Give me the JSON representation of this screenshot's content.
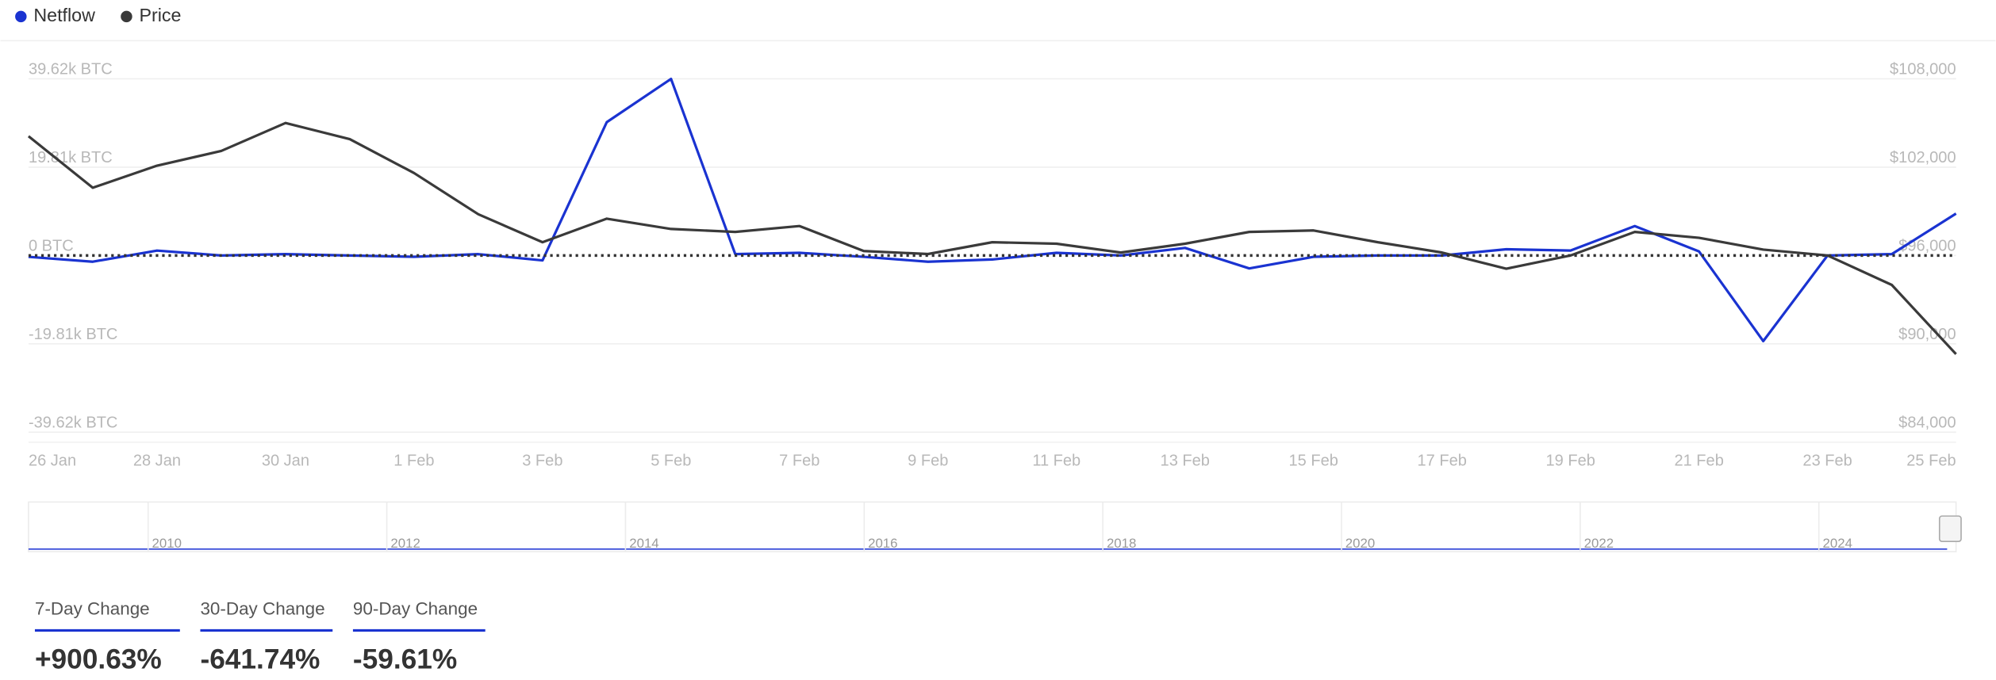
{
  "chart_data": {
    "type": "line",
    "categories": [
      "26 Jan",
      null,
      "28 Jan",
      null,
      "30 Jan",
      null,
      "1 Feb",
      null,
      "3 Feb",
      null,
      "5 Feb",
      null,
      "7 Feb",
      null,
      "9 Feb",
      null,
      "11 Feb",
      null,
      "13 Feb",
      null,
      "15 Feb",
      null,
      "17 Feb",
      null,
      "19 Feb",
      null,
      "21 Feb",
      null,
      "23 Feb",
      null,
      "25 Feb"
    ],
    "series": [
      {
        "name": "Netflow",
        "color": "#1a33d1",
        "values": [
          -300,
          -1400,
          1100,
          0,
          300,
          0,
          -300,
          300,
          -1100,
          29900,
          39600,
          300,
          600,
          -300,
          -1400,
          -900,
          600,
          0,
          1700,
          -2900,
          -300,
          0,
          0,
          1400,
          1100,
          6600,
          900,
          -19200,
          0,
          300,
          9400
        ]
      },
      {
        "name": "Price",
        "color": "#3a3a3a",
        "axis": "y2",
        "values": [
          104100,
          100600,
          102100,
          103100,
          105000,
          103900,
          101600,
          98800,
          96900,
          98500,
          97800,
          97600,
          98000,
          96300,
          96100,
          96900,
          96800,
          96200,
          96800,
          97600,
          97700,
          96900,
          96200,
          95100,
          96000,
          97600,
          97200,
          96400,
          96000,
          94000,
          89300
        ]
      }
    ],
    "ylim": [
      -39620,
      39620
    ],
    "yticks": [
      {
        "value": 39620,
        "label": "39.62k BTC"
      },
      {
        "value": 19810,
        "label": "19.81k BTC"
      },
      {
        "value": 0,
        "label": "0 BTC"
      },
      {
        "value": -19810,
        "label": "-19.81k BTC"
      },
      {
        "value": -39620,
        "label": "-39.62k BTC"
      }
    ],
    "y2lim": [
      84000,
      108000
    ],
    "y2ticks": [
      {
        "value": 108000,
        "label": "$108,000"
      },
      {
        "value": 102000,
        "label": "$102,000"
      },
      {
        "value": 96000,
        "label": "$96,000"
      },
      {
        "value": 90000,
        "label": "$90,000"
      },
      {
        "value": 84000,
        "label": "$84,000"
      }
    ],
    "grid": true
  },
  "navigator": {
    "years": [
      "2010",
      "2012",
      "2014",
      "2016",
      "2018",
      "2020",
      "2022",
      "2024"
    ]
  },
  "stats": [
    {
      "label": "7-Day Change",
      "value": "+900.63%"
    },
    {
      "label": "30-Day Change",
      "value": "-641.74%"
    },
    {
      "label": "90-Day Change",
      "value": "-59.61%"
    }
  ]
}
